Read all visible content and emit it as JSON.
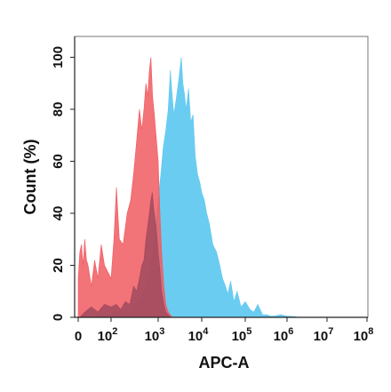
{
  "chart_data": {
    "type": "area",
    "title": "",
    "xlabel": "APC-A",
    "ylabel": "Count (%)",
    "x_scale": "biexponential",
    "xlim": [
      0,
      100000000
    ],
    "ylim": [
      0,
      108
    ],
    "x_ticks": [
      {
        "value": 0,
        "base": "0",
        "exp": ""
      },
      {
        "value": 100,
        "base": "10",
        "exp": "2"
      },
      {
        "value": 1000,
        "base": "10",
        "exp": "3"
      },
      {
        "value": 10000,
        "base": "10",
        "exp": "4"
      },
      {
        "value": 100000,
        "base": "10",
        "exp": "5"
      },
      {
        "value": 1000000,
        "base": "10",
        "exp": "6"
      },
      {
        "value": 10000000,
        "base": "10",
        "exp": "7"
      },
      {
        "value": 100000000,
        "base": "10",
        "exp": "8"
      }
    ],
    "y_ticks": [
      "0",
      "20",
      "40",
      "60",
      "80",
      "100"
    ],
    "grid": false,
    "legend": "none",
    "series": [
      {
        "color": "#62c9f0",
        "x": [
          30,
          100,
          150,
          200,
          250,
          300,
          400,
          500,
          600,
          700,
          800,
          900,
          1000,
          1150,
          1300,
          1500,
          1700,
          1900,
          2100,
          2300,
          2600,
          3000,
          3400,
          3700,
          4000,
          4400,
          5000,
          5600,
          6300,
          7100,
          8000,
          9000,
          10000,
          11500,
          13000,
          15000,
          18000,
          22000,
          26000,
          30000,
          35000,
          40000,
          46000,
          55000,
          65000,
          80000,
          100000,
          130000,
          160000,
          200000,
          260000,
          330000,
          400000,
          500000,
          700000,
          1000000,
          1500000,
          2000000
        ],
        "y": [
          0,
          1,
          2,
          3,
          3,
          5,
          7,
          10,
          15,
          21,
          28,
          36,
          45,
          55,
          65,
          72,
          80,
          95,
          85,
          78,
          84,
          92,
          100,
          90,
          86,
          80,
          88,
          75,
          78,
          62,
          55,
          52,
          48,
          45,
          40,
          36,
          28,
          25,
          20,
          15,
          12,
          9,
          14,
          6,
          10,
          4,
          6,
          3,
          2,
          5,
          1,
          1,
          0.5,
          0.5,
          1,
          0.5,
          0.3,
          0
        ]
      },
      {
        "color": "#f05a60",
        "x": [
          0,
          5,
          10,
          15,
          20,
          25,
          30,
          40,
          50,
          60,
          70,
          80,
          100,
          115,
          130,
          150,
          180,
          220,
          260,
          300,
          350,
          400,
          450,
          500,
          550,
          600,
          650,
          700,
          760,
          830,
          900,
          1000,
          1100,
          1200,
          1350,
          1500,
          1700,
          1900,
          2100
        ],
        "y": [
          15,
          25,
          28,
          20,
          30,
          22,
          20,
          12,
          22,
          15,
          28,
          20,
          15,
          30,
          50,
          30,
          28,
          40,
          45,
          55,
          68,
          80,
          72,
          80,
          90,
          85,
          95,
          100,
          85,
          78,
          70,
          60,
          40,
          25,
          12,
          5,
          2,
          1,
          0
        ]
      },
      {
        "color": "#a04a5e",
        "x": [
          5,
          20,
          40,
          60,
          80,
          100,
          130,
          160,
          200,
          250,
          300,
          350,
          400,
          450,
          500,
          550,
          600,
          650,
          700,
          750,
          800,
          900,
          1000,
          1100,
          1200,
          1350,
          1500,
          1700,
          1900
        ],
        "y": [
          0,
          2,
          4,
          2,
          5,
          4,
          5,
          3,
          6,
          5,
          12,
          10,
          15,
          20,
          22,
          30,
          35,
          40,
          45,
          48,
          42,
          35,
          25,
          18,
          10,
          5,
          2,
          1,
          0
        ]
      }
    ]
  }
}
